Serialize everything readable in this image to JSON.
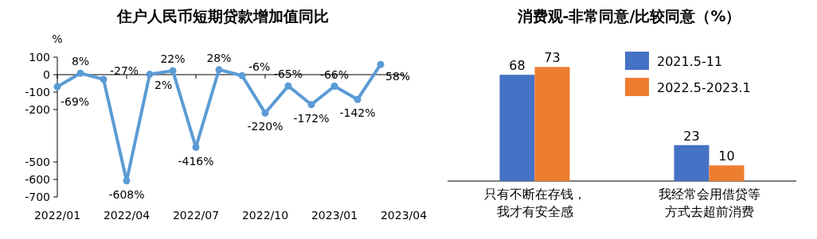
{
  "chart_data": [
    {
      "type": "line",
      "title": "住户人民币短期贷款增加值同比",
      "ylabel": "%",
      "x": [
        "2022-01",
        "2022-02",
        "2022-03",
        "2022-04",
        "2022-05",
        "2022-06",
        "2022-07",
        "2022-08",
        "2022-09",
        "2022-10",
        "2022-11",
        "2022-12",
        "2023-01",
        "2023-02",
        "2023-03"
      ],
      "xlim": [
        "2022-01",
        "2023-04"
      ],
      "xticks": [
        {
          "value": "2022-01",
          "label": "2022/01"
        },
        {
          "value": "2022-04",
          "label": "2022/04"
        },
        {
          "value": "2022-07",
          "label": "2022/07"
        },
        {
          "value": "2022-10",
          "label": "2022/10"
        },
        {
          "value": "2023-01",
          "label": "2023/01"
        },
        {
          "value": "2023-04",
          "label": "2023/04"
        }
      ],
      "ylim": [
        -700,
        100
      ],
      "yticks": [
        100,
        0,
        -100,
        -200,
        -500,
        -600,
        -700
      ],
      "marker": "circle",
      "line_style": "solid",
      "series": [
        {
          "color": "#5b9bd5",
          "values": [
            -69,
            8,
            -27,
            -608,
            2,
            22,
            -416,
            28,
            -6,
            -220,
            -65,
            -172,
            -66,
            -142,
            58
          ],
          "value_labels": [
            "-69%",
            "8%",
            "-27%",
            "-608%",
            "2%",
            "22%",
            "-416%",
            "28%",
            "-6%",
            "-220%",
            "-65%",
            "-172%",
            "-66%",
            "-142%",
            "58%"
          ]
        }
      ]
    },
    {
      "type": "bar",
      "title": "消费观-非常同意/比较同意（%）",
      "categories": [
        "只有不断在存钱，我才有安全感",
        "我经常会用借贷等方式去超前消费"
      ],
      "data_labels": true,
      "legend": "top right",
      "series": [
        {
          "name": "2021.5-11",
          "color": "#4472c4",
          "values": [
            68,
            23
          ]
        },
        {
          "name": "2022.5-2023.1",
          "color": "#ed7d31",
          "values": [
            73,
            10
          ]
        }
      ]
    }
  ]
}
